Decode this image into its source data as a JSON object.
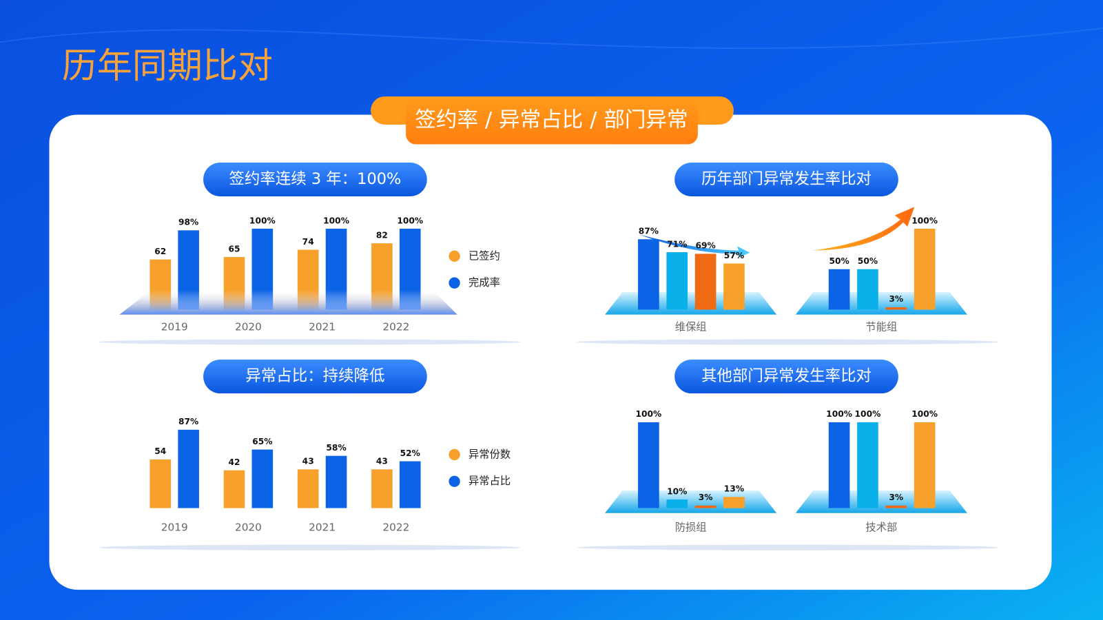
{
  "title": "历年同期比对",
  "banner": "签约率 / 异常占比 / 部门异常",
  "chart_data": [
    {
      "type": "bar",
      "title": "签约率连续 3 年：100%",
      "categories": [
        "2019",
        "2020",
        "2021",
        "2022"
      ],
      "series": [
        {
          "name": "已签约",
          "color": "#f7a02c",
          "values": [
            62,
            65,
            74,
            82
          ]
        },
        {
          "name": "完成率",
          "color": "#0b63e6",
          "values": [
            98,
            100,
            100,
            100
          ],
          "value_labels": [
            "98%",
            "100%",
            "100%",
            "100%"
          ]
        }
      ]
    },
    {
      "type": "bar",
      "title": "异常占比：持续降低",
      "categories": [
        "2019",
        "2020",
        "2021",
        "2022"
      ],
      "series": [
        {
          "name": "异常份数",
          "color": "#f7a02c",
          "values": [
            54,
            42,
            43,
            43
          ]
        },
        {
          "name": "异常占比",
          "color": "#0b63e6",
          "values": [
            87,
            65,
            58,
            52
          ],
          "value_labels": [
            "87%",
            "65%",
            "58%",
            "52%"
          ]
        }
      ]
    },
    {
      "type": "bar",
      "title": "历年部门异常发生率比对",
      "colors": [
        "#0b63e6",
        "#0ab0ea",
        "#f06a14",
        "#f7a02c"
      ],
      "groups": [
        {
          "label": "维保组",
          "values": [
            87,
            71,
            69,
            57
          ],
          "value_labels": [
            "87%",
            "71%",
            "69%",
            "57%"
          ]
        },
        {
          "label": "节能组",
          "values": [
            50,
            50,
            3,
            100
          ],
          "value_labels": [
            "50%",
            "50%",
            "3%",
            "100%"
          ]
        }
      ]
    },
    {
      "type": "bar",
      "title": "其他部门异常发生率比对",
      "colors": [
        "#0b63e6",
        "#0ab0ea",
        "#f06a14",
        "#f7a02c"
      ],
      "groups": [
        {
          "label": "防损组",
          "values": [
            100,
            10,
            3,
            13
          ],
          "value_labels": [
            "100%",
            "10%",
            "3%",
            "13%"
          ]
        },
        {
          "label": "技术部",
          "values": [
            100,
            100,
            3,
            100
          ],
          "value_labels": [
            "100%",
            "100%",
            "3%",
            "100%"
          ]
        }
      ]
    }
  ]
}
